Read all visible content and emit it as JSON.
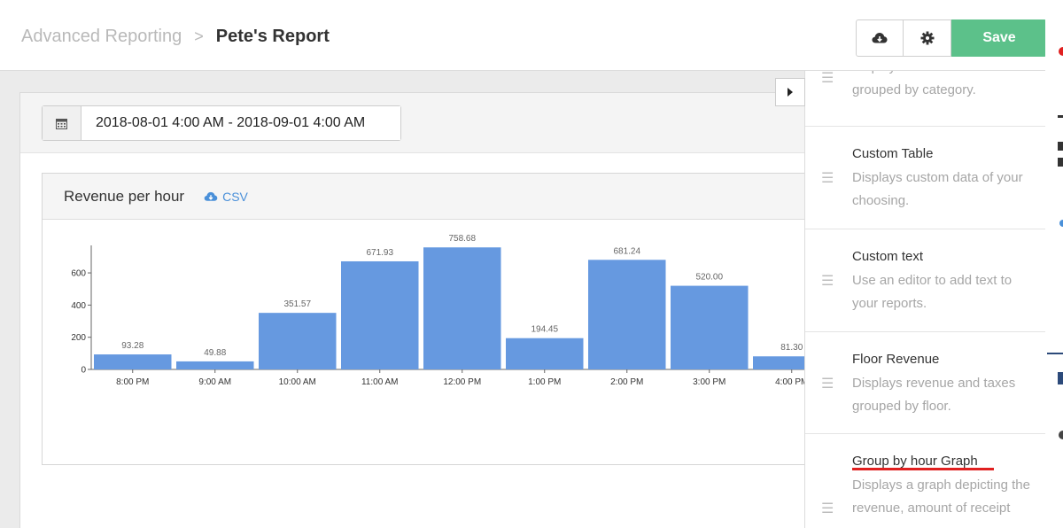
{
  "header": {
    "breadcrumb_parent": "Advanced Reporting",
    "breadcrumb_separator": ">",
    "breadcrumb_current": "Pete's Report",
    "save_label": "Save",
    "cloud_icon": "cloud-download-icon",
    "gear_icon": "gear-icon"
  },
  "filters": {
    "date_range": "2018-08-01 4:00 AM - 2018-09-01 4:00 AM",
    "calendar_icon": "calendar-icon"
  },
  "chart_card": {
    "title": "Revenue per hour",
    "csv_label": "CSV"
  },
  "chart_data": {
    "type": "bar",
    "title": "Revenue per hour",
    "categories": [
      "8:00 PM",
      "9:00 AM",
      "10:00 AM",
      "11:00 AM",
      "12:00 PM",
      "1:00 PM",
      "2:00 PM",
      "3:00 PM",
      "4:00 PM"
    ],
    "values": [
      93.28,
      49.88,
      351.57,
      671.93,
      758.68,
      194.45,
      681.24,
      520.0,
      81.3
    ],
    "data_labels": [
      "93.28",
      "49.88",
      "351.57",
      "671.93",
      "758.68",
      "194.45",
      "681.24",
      "520.00",
      "81.30"
    ],
    "yticks": [
      0,
      200,
      400,
      600
    ],
    "ylim": [
      0,
      760
    ],
    "color": "#6699e0",
    "grid": false,
    "xlabel": "",
    "ylabel": ""
  },
  "sidebar": {
    "widgets": [
      {
        "title": "",
        "desc": "Displays revenue and taxes grouped by category."
      },
      {
        "title": "Custom Table",
        "desc": "Displays custom data of your choosing."
      },
      {
        "title": "Custom text",
        "desc": "Use an editor to add text to your reports."
      },
      {
        "title": "Floor Revenue",
        "desc": "Displays revenue and taxes grouped by floor."
      },
      {
        "title": "Group by hour Graph",
        "desc": "Displays a graph depicting the revenue, amount of receipt"
      }
    ]
  }
}
